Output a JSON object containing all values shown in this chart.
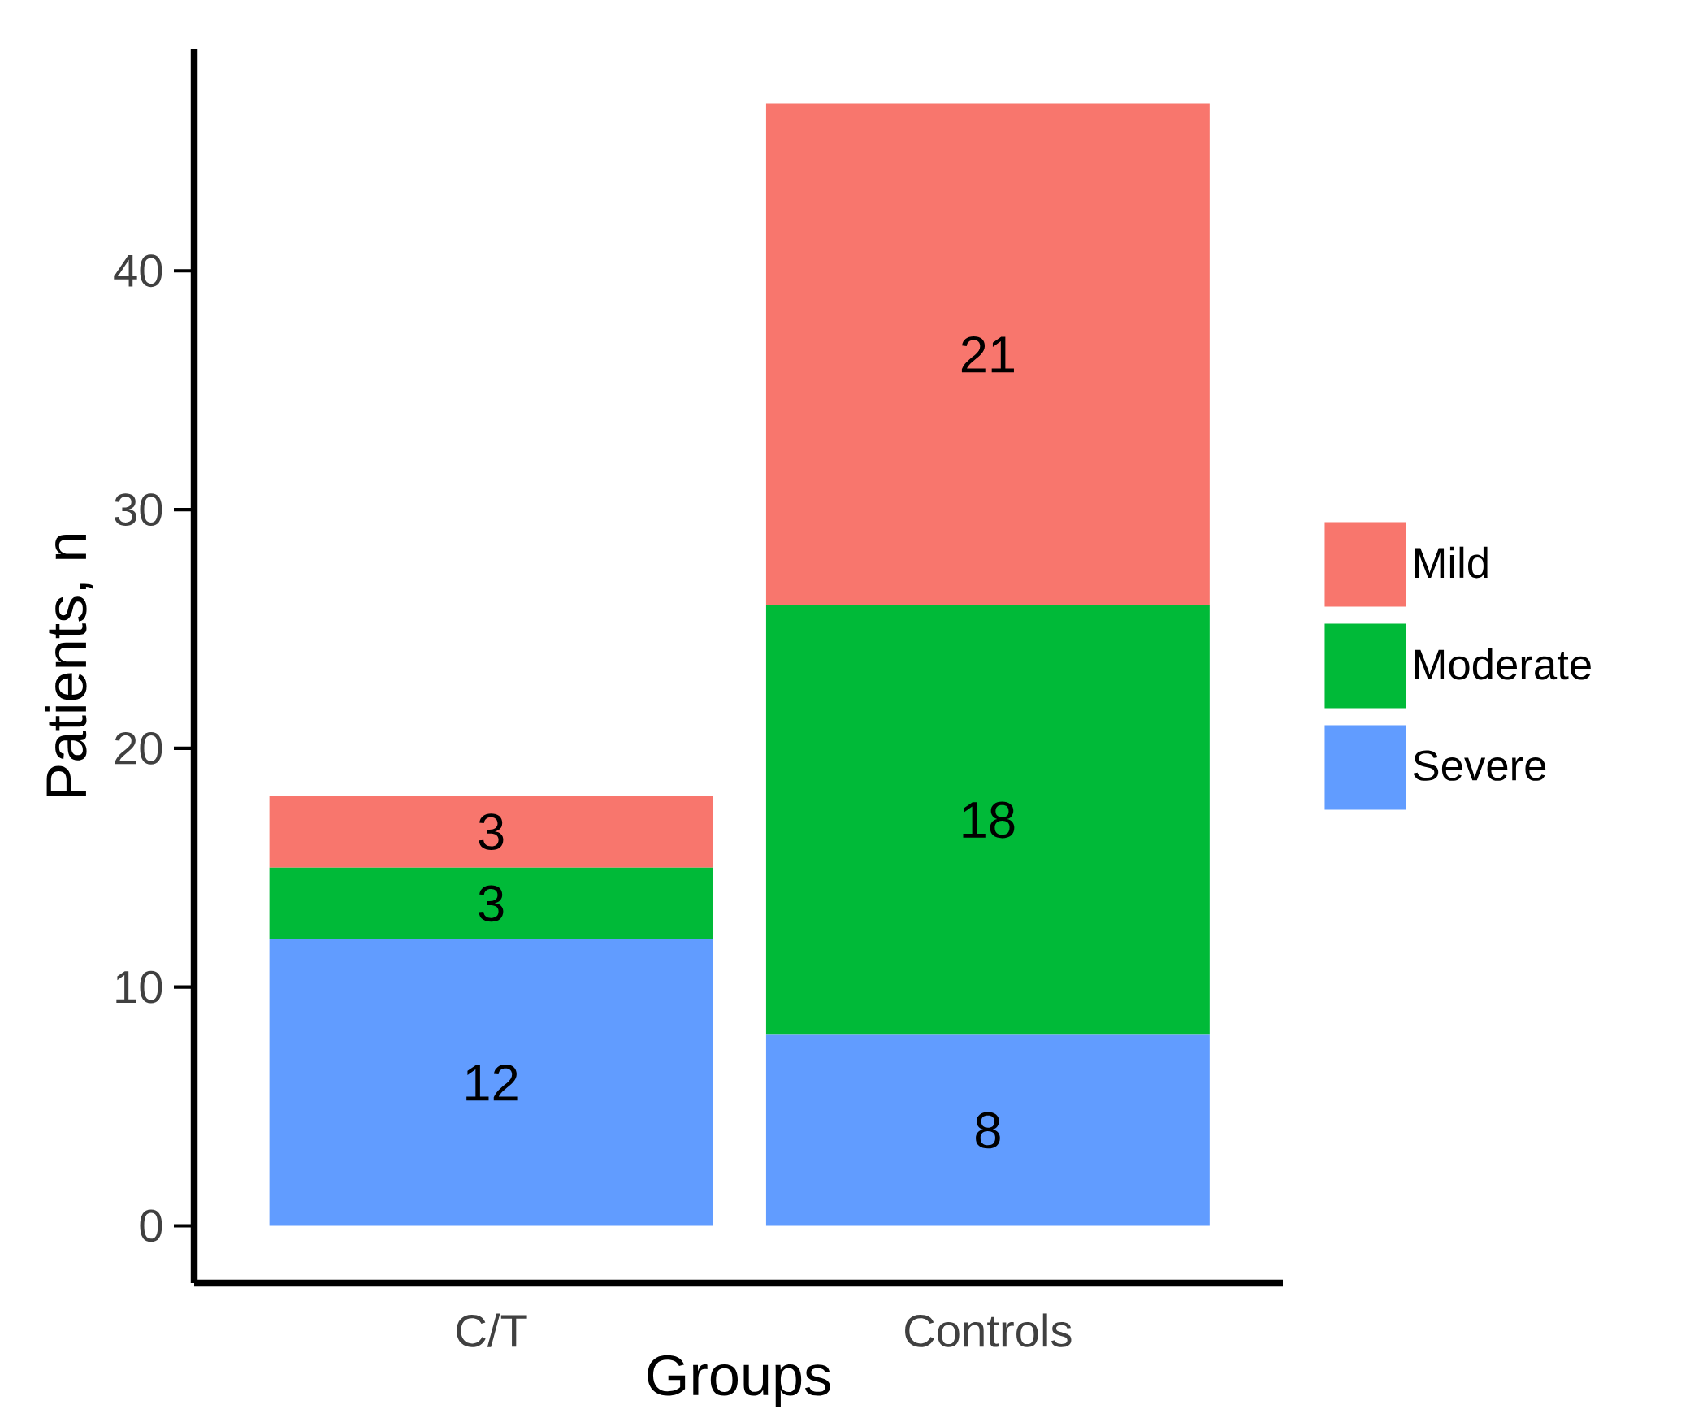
{
  "chart_data": {
    "type": "bar",
    "stacked": true,
    "xlabel": "Groups",
    "ylabel": "Patients, n",
    "categories": [
      "C/T",
      "Controls"
    ],
    "series": [
      {
        "name": "Severe",
        "color": "#619cff",
        "values": [
          12,
          8
        ]
      },
      {
        "name": "Moderate",
        "color": "#00ba38",
        "values": [
          3,
          18
        ]
      },
      {
        "name": "Mild",
        "color": "#f8766d",
        "values": [
          3,
          21
        ]
      }
    ],
    "ylim": [
      -2.4,
      49.3
    ],
    "yticks": [
      0,
      10,
      20,
      30,
      40
    ],
    "grid": false,
    "legend": "right",
    "data_labels": true
  }
}
